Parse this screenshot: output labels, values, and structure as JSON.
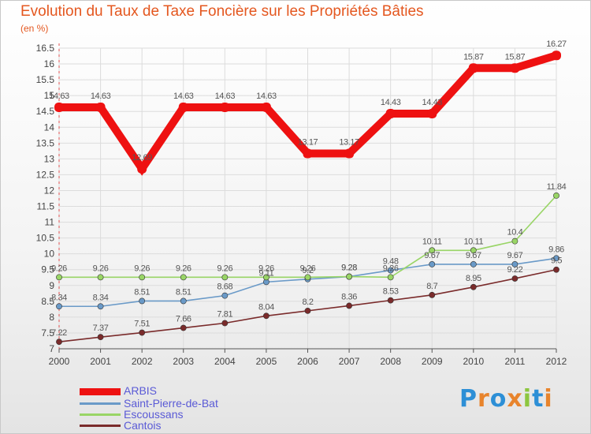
{
  "title": "Evolution du Taux de Taxe Foncière sur les Propriétés Bâties",
  "unit": "(en %)",
  "logo": {
    "letters": [
      "P",
      "r",
      "o",
      "x",
      "i",
      "t",
      "i"
    ],
    "colors": [
      "#2d8fd6",
      "#e8842c",
      "#2d8fd6",
      "#e8842c",
      "#8cc63f",
      "#2d8fd6",
      "#e8842c"
    ]
  },
  "chart_data": {
    "type": "line",
    "title": "Evolution du Taux de Taxe Foncière sur les Propriétés Bâties",
    "ylabel": "(en %)",
    "xlabel": "",
    "categories": [
      "2000",
      "2001",
      "2002",
      "2003",
      "2004",
      "2005",
      "2006",
      "2007",
      "2008",
      "2009",
      "2010",
      "2011",
      "2012"
    ],
    "ylim": [
      7,
      16.5
    ],
    "yticks": [
      "7",
      "7.5",
      "8",
      "8.5",
      "9",
      "9.5",
      "10",
      "10.5",
      "11",
      "11.5",
      "12",
      "12.5",
      "13",
      "13.5",
      "14",
      "14.5",
      "15",
      "15.5",
      "16",
      "16.5"
    ],
    "legend_position": "bottom-left",
    "series": [
      {
        "name": "ARBIS",
        "color": "#ee1111",
        "values": [
          14.63,
          14.63,
          12.69,
          14.63,
          14.63,
          14.63,
          13.17,
          13.17,
          14.43,
          14.43,
          15.87,
          15.87,
          16.27
        ],
        "labels": [
          "14.63",
          "14.63",
          "12.69",
          "14.63",
          "14.63",
          "14.63",
          "13.17",
          "13.17",
          "14.43",
          "14.43",
          "15.87",
          "15.87",
          "16.27"
        ]
      },
      {
        "name": "Saint-Pierre-de-Bat",
        "color": "#6a9ac8",
        "values": [
          8.34,
          8.34,
          8.51,
          8.51,
          8.68,
          9.11,
          9.2,
          9.28,
          9.48,
          9.67,
          9.67,
          9.67,
          9.86
        ],
        "labels": [
          "8.34",
          "8.34",
          "8.51",
          "8.51",
          "8.68",
          "9.11",
          "9.2",
          "9.28",
          "9.48",
          "9.67",
          "9.67",
          "9.67",
          "9.86"
        ]
      },
      {
        "name": "Escoussans",
        "color": "#99d566",
        "values": [
          9.26,
          9.26,
          9.26,
          9.26,
          9.26,
          9.26,
          9.26,
          9.28,
          9.26,
          10.11,
          10.11,
          10.4,
          11.84
        ],
        "labels": [
          "9.26",
          "9.26",
          "9.26",
          "9.26",
          "9.26",
          "9.26",
          "9.26",
          "9.28",
          "9.26",
          "10.11",
          "10.11",
          "10.4",
          "11.84"
        ]
      },
      {
        "name": "Cantois",
        "color": "#7a2b2b",
        "values": [
          7.22,
          7.37,
          7.51,
          7.66,
          7.81,
          8.04,
          8.2,
          8.36,
          8.53,
          8.7,
          8.95,
          9.22,
          9.5
        ],
        "labels": [
          "7.22",
          "7.37",
          "7.51",
          "7.66",
          "7.81",
          "8.04",
          "8.2",
          "8.36",
          "8.53",
          "8.7",
          "8.95",
          "9.22",
          "9.5"
        ]
      }
    ]
  }
}
